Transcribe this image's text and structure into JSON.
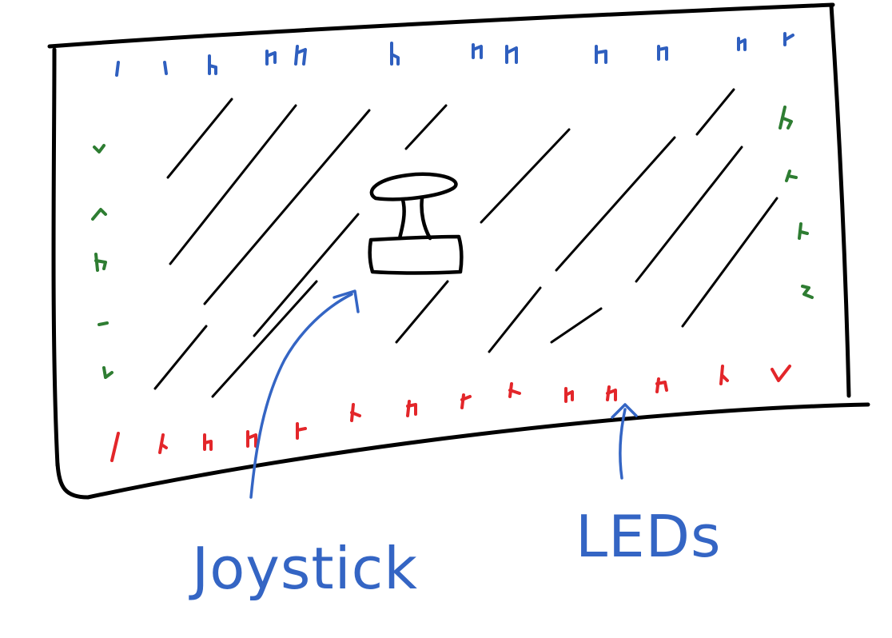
{
  "labels": {
    "joystick": "Joystick",
    "leds": "LEDs"
  },
  "colors": {
    "outline": "#000000",
    "annotation": "#3465c4",
    "led_top": "#2f5fbf",
    "led_side": "#2e7d32",
    "led_bottom": "#e3262a"
  },
  "icons": {
    "joystick": "joystick-icon"
  }
}
